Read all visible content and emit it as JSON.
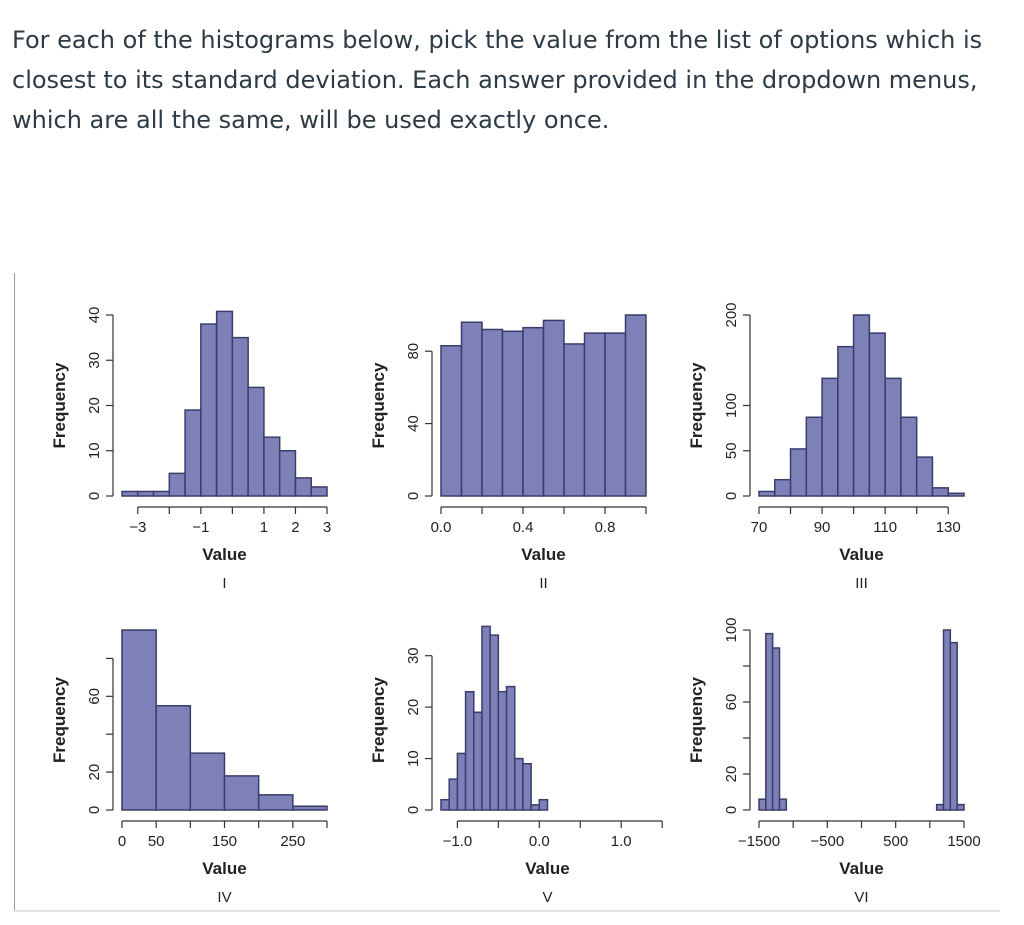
{
  "question": {
    "text": "For each of the histograms below, pick the value from the list of options which is closest to its standard deviation.  Each answer provided in the dropdown menus, which are all the same, will be used exactly once."
  },
  "colors": {
    "bar_fill": "#7d81b8",
    "bar_stroke": "#3a3d6a",
    "axis": "#333333"
  },
  "chart_data": [
    {
      "type": "bar",
      "panel": "I",
      "xlabel": "Value",
      "ylabel": "Frequency",
      "bins_start": -3.5,
      "bin_width": 0.5,
      "values": [
        1,
        1,
        1,
        5,
        19,
        38,
        41,
        35,
        24,
        13,
        10,
        4,
        2
      ],
      "xlim": [
        -3.5,
        3.0
      ],
      "ylim": [
        0,
        40
      ],
      "xticks": [
        -3,
        -2,
        -1,
        0,
        1,
        2,
        3
      ],
      "xtick_labels": [
        "−3",
        "",
        "−1",
        "",
        "1",
        "2",
        "3"
      ],
      "yticks": [
        0,
        10,
        20,
        30,
        40
      ],
      "ytick_labels": [
        "0",
        "10",
        "20",
        "30",
        "40"
      ]
    },
    {
      "type": "bar",
      "panel": "II",
      "xlabel": "Value",
      "ylabel": "Frequency",
      "bins_start": 0.0,
      "bin_width": 0.1,
      "values": [
        83,
        96,
        92,
        91,
        93,
        97,
        84,
        90,
        90,
        100
      ],
      "xlim": [
        0,
        1.0
      ],
      "ylim": [
        0,
        100
      ],
      "xticks": [
        0,
        0.2,
        0.4,
        0.6,
        0.8,
        1.0
      ],
      "xtick_labels": [
        "0.0",
        "",
        "0.4",
        "",
        "0.8",
        ""
      ],
      "yticks": [
        0,
        40,
        80
      ],
      "ytick_labels": [
        "0",
        "40",
        "80"
      ]
    },
    {
      "type": "bar",
      "panel": "III",
      "xlabel": "Value",
      "ylabel": "Frequency",
      "bins_start": 70,
      "bin_width": 5,
      "values": [
        5,
        18,
        52,
        87,
        130,
        165,
        200,
        180,
        130,
        87,
        43,
        9,
        3
      ],
      "xlim": [
        70,
        135
      ],
      "ylim": [
        0,
        200
      ],
      "xticks": [
        70,
        80,
        90,
        100,
        110,
        120,
        130
      ],
      "xtick_labels": [
        "70",
        "",
        "90",
        "",
        "110",
        "",
        "130"
      ],
      "yticks": [
        0,
        50,
        100,
        200
      ],
      "ytick_labels": [
        "0",
        "50",
        "100",
        "200"
      ]
    },
    {
      "type": "bar",
      "panel": "IV",
      "xlabel": "Value",
      "ylabel": "Frequency",
      "bins_start": 0,
      "bin_width": 50,
      "values": [
        95,
        55,
        30,
        18,
        8,
        2
      ],
      "xlim": [
        0,
        300
      ],
      "ylim": [
        0,
        95
      ],
      "xticks": [
        0,
        50,
        100,
        150,
        200,
        250,
        300
      ],
      "xtick_labels": [
        "0",
        "50",
        "",
        "150",
        "",
        "250",
        ""
      ],
      "yticks": [
        0,
        20,
        40,
        60,
        80
      ],
      "ytick_labels": [
        "0",
        "20",
        "",
        "60",
        ""
      ]
    },
    {
      "type": "bar",
      "panel": "V",
      "xlabel": "Value",
      "ylabel": "Frequency",
      "bins_start": -1.2,
      "bin_width": 0.1,
      "values": [
        2,
        6,
        11,
        23,
        19,
        36,
        34,
        23,
        24,
        10,
        9,
        1,
        2
      ],
      "xlim": [
        -1.2,
        1.4
      ],
      "ylim": [
        0,
        35
      ],
      "xticks": [
        -1.0,
        -0.5,
        0.0,
        0.5,
        1.0,
        1.5
      ],
      "xtick_labels": [
        "−1.0",
        "",
        "0.0",
        "",
        "1.0",
        ""
      ],
      "yticks": [
        0,
        10,
        20,
        30
      ],
      "ytick_labels": [
        "0",
        "10",
        "20",
        "30"
      ]
    },
    {
      "type": "bar",
      "panel": "VI",
      "xlabel": "Value",
      "ylabel": "Frequency",
      "bins_start": -1500,
      "bin_width": 100,
      "values": [
        6,
        98,
        90,
        6,
        0,
        0,
        0,
        0,
        0,
        0,
        0,
        0,
        0,
        0,
        0,
        0,
        0,
        0,
        0,
        0,
        0,
        0,
        0,
        0,
        0,
        0,
        3,
        100,
        93,
        3
      ],
      "xlim": [
        -1500,
        1500
      ],
      "ylim": [
        0,
        100
      ],
      "xticks": [
        -1500,
        -1000,
        -500,
        0,
        500,
        1000,
        1500
      ],
      "xtick_labels": [
        "−1500",
        "",
        "−500",
        "",
        "500",
        "",
        "1500"
      ],
      "yticks": [
        0,
        20,
        40,
        60,
        80,
        100
      ],
      "ytick_labels": [
        "0",
        "20",
        "",
        "60",
        "",
        "100"
      ]
    }
  ]
}
